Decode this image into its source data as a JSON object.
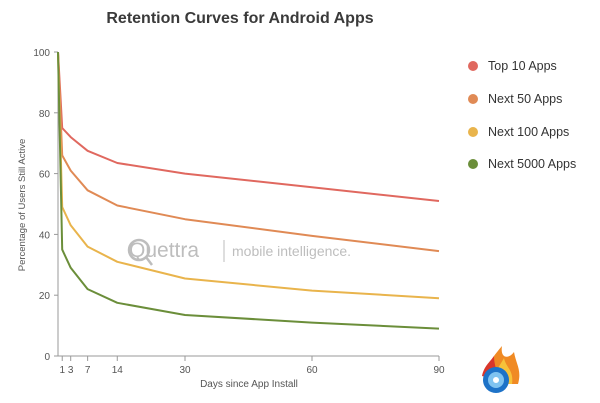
{
  "chart_data": {
    "type": "line",
    "title": "Retention Curves for Android Apps",
    "xlabel": "Days since App Install",
    "ylabel": "Percentage of Users Still Active",
    "xlim": [
      0,
      90
    ],
    "ylim": [
      0,
      100
    ],
    "x_ticks": [
      1,
      3,
      7,
      14,
      30,
      60,
      90
    ],
    "y_ticks": [
      0,
      20,
      40,
      60,
      80,
      100
    ],
    "grid": false,
    "legend_position": "right",
    "x": [
      0,
      1,
      3,
      7,
      14,
      30,
      60,
      90
    ],
    "series": [
      {
        "name": "Top 10 Apps",
        "color": "#e0685f",
        "values": [
          100,
          75,
          72,
          67.5,
          63.5,
          60,
          55.5,
          51
        ]
      },
      {
        "name": "Next 50 Apps",
        "color": "#e08a55",
        "values": [
          100,
          66,
          61,
          54.5,
          49.5,
          45,
          39.5,
          34.5
        ]
      },
      {
        "name": "Next 100 Apps",
        "color": "#e9b44c",
        "values": [
          100,
          49,
          43,
          36,
          31,
          25.5,
          21.5,
          19
        ]
      },
      {
        "name": "Next 5000 Apps",
        "color": "#6b8e3a",
        "values": [
          100,
          35,
          29,
          22,
          17.5,
          13.5,
          11,
          9
        ]
      }
    ]
  },
  "watermark": {
    "brand": "Quettra",
    "tagline": "mobile intelligence."
  }
}
